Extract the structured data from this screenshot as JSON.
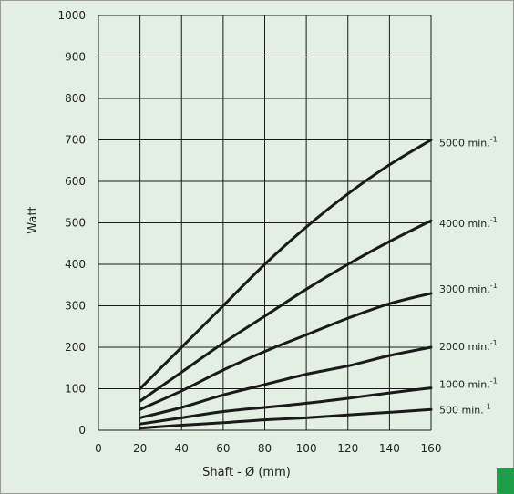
{
  "accent_color": "#1f9e4a",
  "chart_data": {
    "type": "line",
    "title": "",
    "xlabel": "Shaft - Ø (mm)",
    "ylabel": "Watt",
    "xlim": [
      0,
      160
    ],
    "ylim": [
      0,
      1000
    ],
    "x_ticks": [
      0,
      20,
      40,
      60,
      80,
      100,
      120,
      140,
      160
    ],
    "y_ticks": [
      0,
      100,
      200,
      300,
      400,
      500,
      600,
      700,
      800,
      900,
      1000
    ],
    "grid": true,
    "legend": "right-end labels",
    "series": [
      {
        "name": "5000 min.",
        "unit_sup": "-1",
        "x": [
          20,
          40,
          60,
          80,
          100,
          120,
          140,
          160
        ],
        "y": [
          100,
          200,
          300,
          400,
          490,
          570,
          640,
          700
        ]
      },
      {
        "name": "4000 min.",
        "unit_sup": "-1",
        "x": [
          20,
          40,
          60,
          80,
          100,
          120,
          140,
          160
        ],
        "y": [
          70,
          140,
          210,
          275,
          340,
          400,
          455,
          505
        ]
      },
      {
        "name": "3000 min.",
        "unit_sup": "-1",
        "x": [
          20,
          40,
          60,
          80,
          100,
          120,
          140,
          160
        ],
        "y": [
          50,
          95,
          145,
          190,
          230,
          270,
          305,
          330
        ]
      },
      {
        "name": "2000 min.",
        "unit_sup": "-1",
        "x": [
          20,
          40,
          60,
          80,
          100,
          120,
          140,
          160
        ],
        "y": [
          30,
          55,
          85,
          110,
          135,
          155,
          180,
          200
        ]
      },
      {
        "name": "1000 min.",
        "unit_sup": "-1",
        "x": [
          20,
          40,
          60,
          80,
          100,
          120,
          140,
          160
        ],
        "y": [
          15,
          30,
          45,
          55,
          65,
          77,
          90,
          102
        ]
      },
      {
        "name": "500 min.",
        "unit_sup": "-1",
        "x": [
          20,
          40,
          60,
          80,
          100,
          120,
          140,
          160
        ],
        "y": [
          5,
          12,
          18,
          25,
          30,
          37,
          43,
          50
        ]
      }
    ]
  }
}
